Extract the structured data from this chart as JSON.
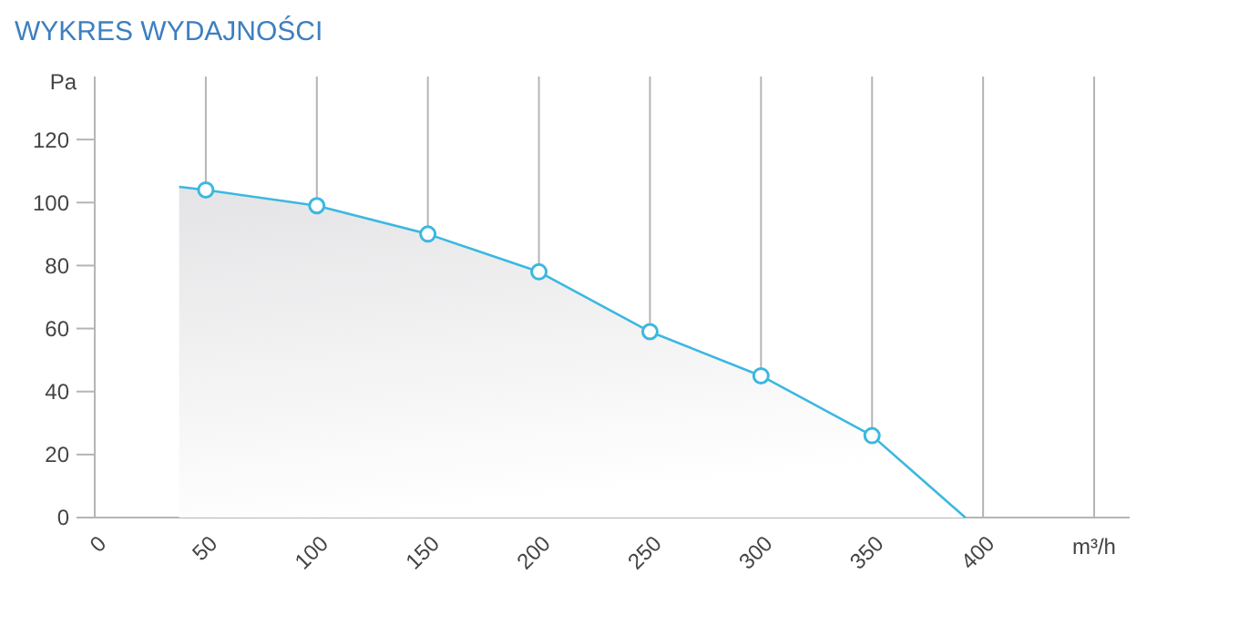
{
  "chart_data": {
    "type": "area",
    "title": "WYKRES WYDAJNOŚCI",
    "xlabel": "m³/h",
    "ylabel": "Pa",
    "xlim": [
      0,
      466
    ],
    "ylim": [
      0,
      140
    ],
    "xticks": [
      0,
      50,
      100,
      150,
      200,
      250,
      300,
      350,
      400,
      {
        "value": 450,
        "label": null
      }
    ],
    "yticks": [
      0,
      20,
      40,
      60,
      80,
      100,
      120
    ],
    "grid": "x",
    "series": [
      {
        "color": "#3bb8e0",
        "marker": "none",
        "x": [
          38,
          50,
          100,
          150,
          200,
          250,
          300,
          350,
          392
        ],
        "values": [
          105,
          104,
          99,
          90,
          78,
          59,
          45,
          26,
          0
        ]
      },
      {
        "type": "scatter",
        "color": "#3bb8e0",
        "marker": "circle",
        "x": [
          50,
          100,
          150,
          200,
          250,
          300,
          350
        ],
        "values": [
          104,
          99,
          90,
          78,
          59,
          45,
          26
        ]
      }
    ]
  }
}
